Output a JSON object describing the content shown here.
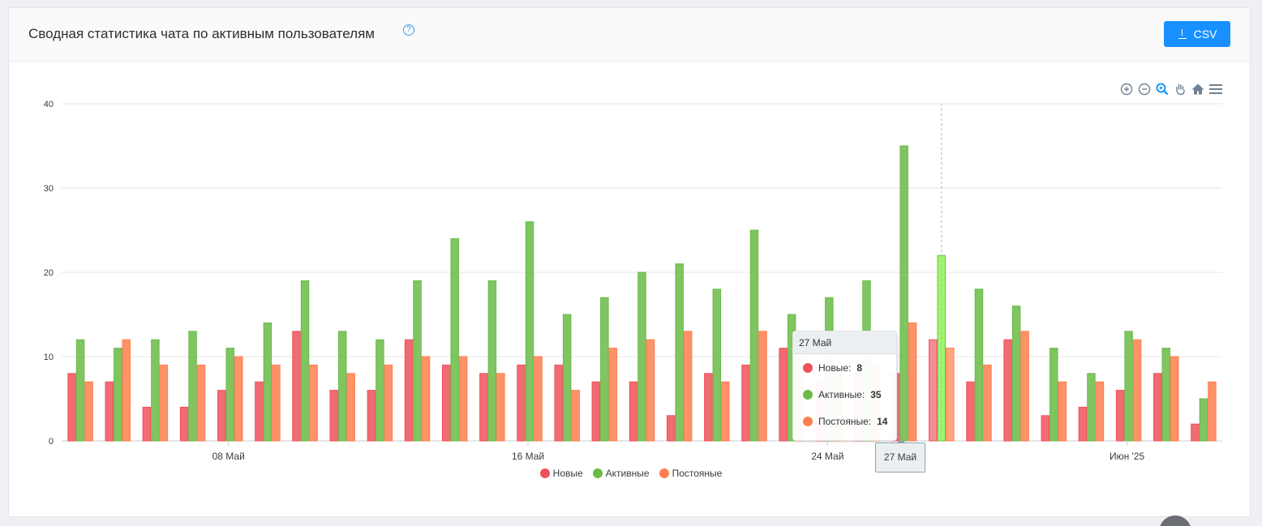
{
  "header": {
    "title": "Сводная статистика чата по активным пользователям",
    "help_icon": "question-circle-icon",
    "csv_label": "CSV",
    "csv_icon": "download-icon"
  },
  "toolbar": [
    "zoom-in-icon",
    "zoom-out-icon",
    "selection-zoom-icon",
    "pan-hand-icon",
    "reset-home-icon",
    "menu-icon"
  ],
  "chart_data": {
    "type": "bar",
    "x_tick_labels": [
      "08 Май",
      "16 Май",
      "24 Май",
      "Июн '25"
    ],
    "y_ticks": [
      0,
      10,
      20,
      30,
      40
    ],
    "ylim": [
      0,
      40
    ],
    "grid": true,
    "legend_position": "bottom",
    "series": [
      {
        "name": "Новые",
        "color": "#f0515a",
        "values": [
          8,
          7,
          4,
          4,
          6,
          7,
          13,
          6,
          6,
          12,
          9,
          8,
          9,
          9,
          7,
          7,
          3,
          8,
          9,
          11,
          7,
          8,
          8,
          12,
          7,
          12,
          3,
          4,
          6,
          8,
          2
        ]
      },
      {
        "name": "Активные",
        "color": "#6abb47",
        "values": [
          12,
          11,
          12,
          13,
          11,
          14,
          19,
          13,
          12,
          19,
          24,
          19,
          26,
          15,
          17,
          20,
          21,
          18,
          25,
          15,
          17,
          19,
          35,
          22,
          18,
          16,
          11,
          8,
          13,
          11,
          5
        ]
      },
      {
        "name": "Постояные",
        "color": "#ff7f4f",
        "values": [
          7,
          12,
          9,
          9,
          10,
          9,
          9,
          8,
          9,
          10,
          10,
          8,
          10,
          6,
          11,
          12,
          13,
          7,
          13,
          10,
          8,
          9,
          14,
          11,
          9,
          13,
          7,
          7,
          12,
          10,
          7
        ]
      }
    ]
  },
  "tooltip": {
    "title": "27 Май",
    "rows": [
      {
        "label": "Новые:",
        "value": "8",
        "color": "#f0515a"
      },
      {
        "label": "Активные:",
        "value": "35",
        "color": "#6abb47"
      },
      {
        "label": "Постояные:",
        "value": "14",
        "color": "#ff7f4f"
      }
    ]
  },
  "x_tooltip": "27 Май"
}
